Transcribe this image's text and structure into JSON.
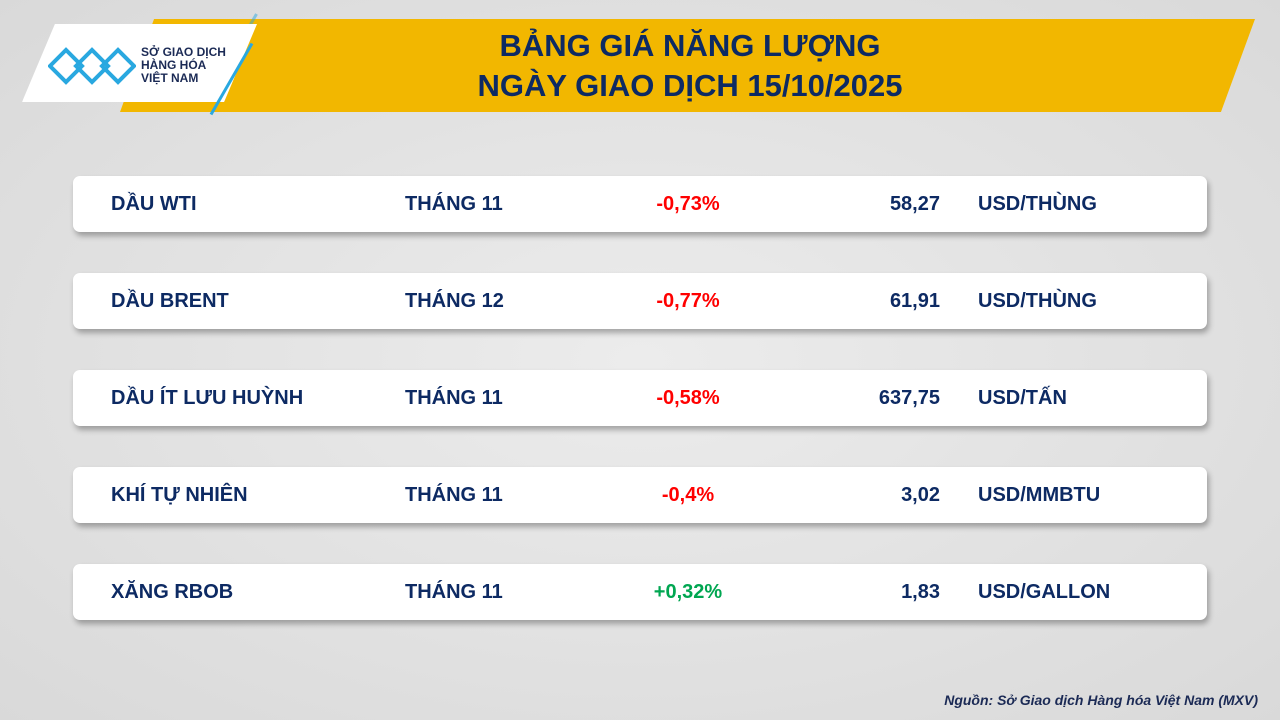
{
  "header": {
    "logo_text": [
      "SỞ GIAO DỊCH",
      "HÀNG HÓA",
      "VIỆT NAM"
    ],
    "title_line1": "BẢNG GIÁ NĂNG LƯỢNG",
    "title_line2": "NGÀY GIAO DỊCH 15/10/2025"
  },
  "colors": {
    "banner": "#f2b700",
    "navy": "#0d2a63",
    "negative": "#ff0000",
    "positive": "#00a651",
    "logo_blue": "#29a8e0"
  },
  "rows": [
    {
      "name": "DẦU WTI",
      "contract": "THÁNG 11",
      "change": "-0,73%",
      "price": "58,27",
      "unit": "USD/THÙNG",
      "dir": "neg"
    },
    {
      "name": "DẦU BRENT",
      "contract": "THÁNG 12",
      "change": "-0,77%",
      "price": "61,91",
      "unit": "USD/THÙNG",
      "dir": "neg"
    },
    {
      "name": "DẦU ÍT LƯU HUỲNH",
      "contract": "THÁNG 11",
      "change": "-0,58%",
      "price": "637,75",
      "unit": "USD/TẤN",
      "dir": "neg"
    },
    {
      "name": "KHÍ TỰ NHIÊN",
      "contract": "THÁNG 11",
      "change": "-0,4%",
      "price": "3,02",
      "unit": "USD/MMBTU",
      "dir": "neg"
    },
    {
      "name": "XĂNG RBOB",
      "contract": "THÁNG 11",
      "change": "+0,32%",
      "price": "1,83",
      "unit": "USD/GALLON",
      "dir": "pos"
    }
  ],
  "footer": {
    "source": "Nguồn: Sở Giao dịch Hàng hóa Việt Nam (MXV)"
  }
}
